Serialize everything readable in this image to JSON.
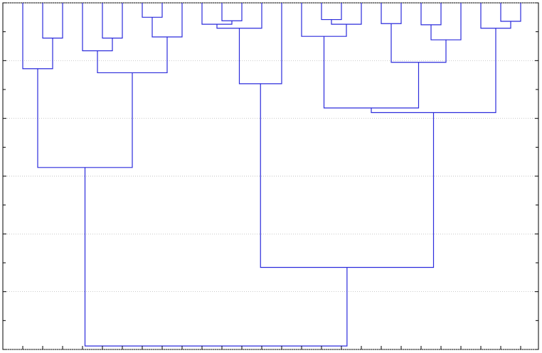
{
  "chart_data": {
    "type": "dendrogram",
    "color": "#2b2bdc",
    "grid": true,
    "y_inverted": true,
    "ylim": [
      0,
      6
    ],
    "yticks": [
      0,
      1,
      2,
      3,
      4,
      5,
      6
    ],
    "yminorticks": [
      0.5,
      1.5,
      2.5,
      3.5,
      4.5,
      5.5
    ],
    "merges": [
      [
        1,
        2,
        0.61
      ],
      [
        0,
        26,
        1.14
      ],
      [
        4,
        5,
        0.61
      ],
      [
        3,
        28,
        0.83
      ],
      [
        6,
        7,
        0.25
      ],
      [
        30,
        8,
        0.59
      ],
      [
        29,
        31,
        1.21
      ],
      [
        27,
        32,
        2.85
      ],
      [
        10,
        11,
        0.31
      ],
      [
        9,
        34,
        0.37
      ],
      [
        35,
        12,
        0.44
      ],
      [
        36,
        13,
        1.4
      ],
      [
        15,
        16,
        0.29
      ],
      [
        38,
        17,
        0.37
      ],
      [
        14,
        39,
        0.58
      ],
      [
        20,
        21,
        0.38
      ],
      [
        41,
        22,
        0.64
      ],
      [
        18,
        19,
        0.36
      ],
      [
        43,
        42,
        1.03
      ],
      [
        40,
        44,
        1.82
      ],
      [
        24,
        25,
        0.32
      ],
      [
        23,
        46,
        0.44
      ],
      [
        45,
        47,
        1.9
      ],
      [
        37,
        48,
        4.58
      ],
      [
        33,
        49,
        5.94
      ]
    ]
  }
}
